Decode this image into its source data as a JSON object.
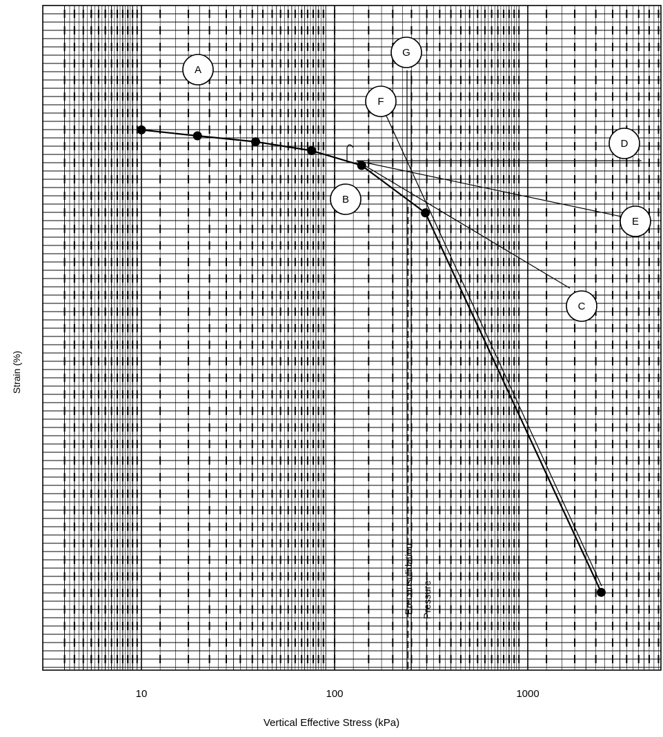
{
  "chart_data": {
    "type": "scatter",
    "xlabel": "Vertical Effective Stress (kPa)",
    "ylabel": "Strain (%)",
    "x_scale": "log",
    "x_range": [
      3.5,
      3900
    ],
    "x_ticks": [
      {
        "value": 10,
        "label": "10"
      },
      {
        "value": 100,
        "label": "100"
      },
      {
        "value": 1000,
        "label": "1000"
      }
    ],
    "y_tick_labels": [],
    "grid": true,
    "series": [
      {
        "points": [
          {
            "x": 10,
            "y": 14.0
          },
          {
            "x": 19.5,
            "y": 15.0
          },
          {
            "x": 39,
            "y": 16.0
          },
          {
            "x": 76,
            "y": 17.5
          },
          {
            "x": 138,
            "y": 20.0
          },
          {
            "x": 295,
            "y": 28.0
          },
          {
            "x": 2400,
            "y": 92.0
          }
        ]
      }
    ],
    "preconsolidation_pressure": 240,
    "vertical_text": [
      "Preconsolidation",
      "Pressure"
    ],
    "annotations": [
      {
        "label": "A"
      },
      {
        "label": "B"
      },
      {
        "label": "C"
      },
      {
        "label": "D"
      },
      {
        "label": "E"
      },
      {
        "label": "F"
      },
      {
        "label": "G"
      }
    ]
  }
}
